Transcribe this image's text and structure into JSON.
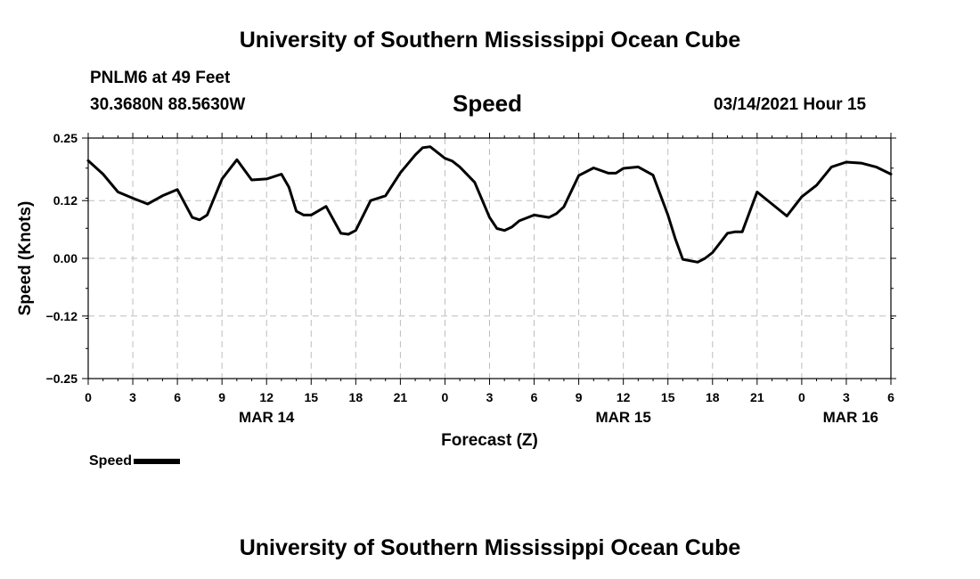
{
  "header": {
    "title_top": "University of Southern Mississippi Ocean Cube",
    "station": "PNLM6 at 49 Feet",
    "coords": "30.3680N 88.5630W",
    "plot_title": "Speed",
    "datetime": "03/14/2021 Hour 15"
  },
  "footer": {
    "title_bottom": "University of Southern Mississippi Ocean Cube"
  },
  "legend": {
    "label": "Speed",
    "color": "#000000"
  },
  "chart_data": {
    "type": "line",
    "title": "Speed",
    "ylabel": "Speed (Knots)",
    "xlabel": "Forecast (Z)",
    "ylim": [
      -0.25,
      0.25
    ],
    "yticks": [
      0.25,
      0.12,
      0.0,
      -0.12,
      -0.25
    ],
    "ytick_labels": [
      "0.25",
      "0.12",
      "0.00",
      "−0.12",
      "−0.25"
    ],
    "xlim": [
      0,
      54
    ],
    "xtick_labels": [
      "0",
      "3",
      "6",
      "9",
      "12",
      "15",
      "18",
      "21",
      "0",
      "3",
      "6",
      "9",
      "12",
      "15",
      "18",
      "21",
      "0",
      "3",
      "6"
    ],
    "day_labels": [
      "MAR 14",
      "MAR 15",
      "MAR 16"
    ],
    "grid": true,
    "legend_position": "bottom-left",
    "series": [
      {
        "name": "Speed",
        "color": "#000000",
        "x": [
          0,
          1,
          2,
          3,
          4,
          5,
          6,
          7,
          7.5,
          8,
          9,
          10,
          11,
          12,
          13,
          13.5,
          14,
          14.5,
          15,
          16,
          17,
          17.5,
          18,
          19,
          20,
          21,
          22,
          22.5,
          23,
          24,
          24.5,
          25,
          26,
          27,
          27.5,
          28,
          28.5,
          29,
          30,
          31,
          31.5,
          32,
          33,
          34,
          35,
          35.5,
          36,
          37,
          38,
          39,
          39.5,
          40,
          41,
          41.5,
          42,
          43,
          43.5,
          44,
          45,
          46,
          47,
          48,
          49,
          50,
          51,
          52,
          53,
          54
        ],
        "y": [
          0.203,
          0.175,
          0.138,
          0.125,
          0.113,
          0.13,
          0.143,
          0.085,
          0.08,
          0.09,
          0.165,
          0.205,
          0.163,
          0.165,
          0.175,
          0.148,
          0.098,
          0.09,
          0.09,
          0.108,
          0.052,
          0.05,
          0.058,
          0.12,
          0.13,
          0.178,
          0.215,
          0.23,
          0.232,
          0.208,
          0.202,
          0.19,
          0.158,
          0.085,
          0.062,
          0.058,
          0.065,
          0.078,
          0.09,
          0.085,
          0.093,
          0.107,
          0.172,
          0.188,
          0.177,
          0.177,
          0.187,
          0.19,
          0.173,
          0.09,
          0.04,
          -0.002,
          -0.008,
          0.0,
          0.012,
          0.052,
          0.055,
          0.055,
          0.138,
          0.113,
          0.088,
          0.128,
          0.152,
          0.19,
          0.2,
          0.198,
          0.19,
          0.175
        ]
      }
    ]
  }
}
